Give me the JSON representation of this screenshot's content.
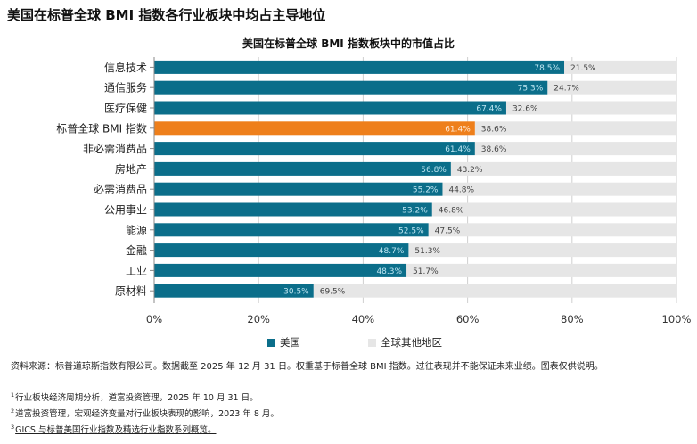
{
  "page_title": "美国在标普全球 BMI 指数各行业板块中均占主导地位",
  "colors": {
    "us": "#0b6e8a",
    "other": "#e6e6e6",
    "highlight": "#ee7f1b",
    "grid": "#cfcfcf"
  },
  "legend": {
    "us": "美国",
    "other": "全球其他地区"
  },
  "chart_data": {
    "type": "bar",
    "orientation": "horizontal",
    "stacked": true,
    "title": "美国在标普全球 BMI 指数板块中的市值占比",
    "categories": [
      "信息技术",
      "通信服务",
      "医疗保健",
      "标普全球 BMI 指数",
      "非必需消费品",
      "房地产",
      "必需消费品",
      "公用事业",
      "能源",
      "金融",
      "工业",
      "原材料"
    ],
    "series": [
      {
        "name": "美国",
        "values": [
          78.5,
          75.3,
          67.4,
          61.4,
          61.4,
          56.8,
          55.2,
          53.2,
          52.5,
          48.7,
          48.3,
          30.5
        ]
      },
      {
        "name": "全球其他地区",
        "values": [
          21.5,
          24.7,
          32.6,
          38.6,
          38.6,
          43.2,
          44.8,
          46.8,
          47.5,
          51.3,
          51.7,
          69.5
        ]
      }
    ],
    "highlight_category": "标普全球 BMI 指数",
    "xlim": [
      0,
      100
    ],
    "x_ticks": [
      0,
      20,
      40,
      60,
      80,
      100
    ],
    "x_tick_labels": [
      "0%",
      "20%",
      "40%",
      "60%",
      "80%",
      "100%"
    ],
    "value_suffix": "%",
    "grid": true,
    "legend_position": "bottom"
  },
  "source": "资料来源：标普道琼斯指数有限公司。数据截至 2025 年 12 月 31 日。权重基于标普全球 BMI 指数。过往表现并不能保证未来业绩。图表仅供说明。",
  "footnotes": [
    {
      "num": "1",
      "text": "行业板块经济周期分析，道富投资管理，2025 年 10 月 31 日。"
    },
    {
      "num": "2",
      "text": "道富投资管理，宏观经济变量对行业板块表现的影响，2023 年 8 月。"
    },
    {
      "num": "3",
      "text": "GICS 与标普美国行业指数及精选行业指数系列概览。"
    }
  ]
}
